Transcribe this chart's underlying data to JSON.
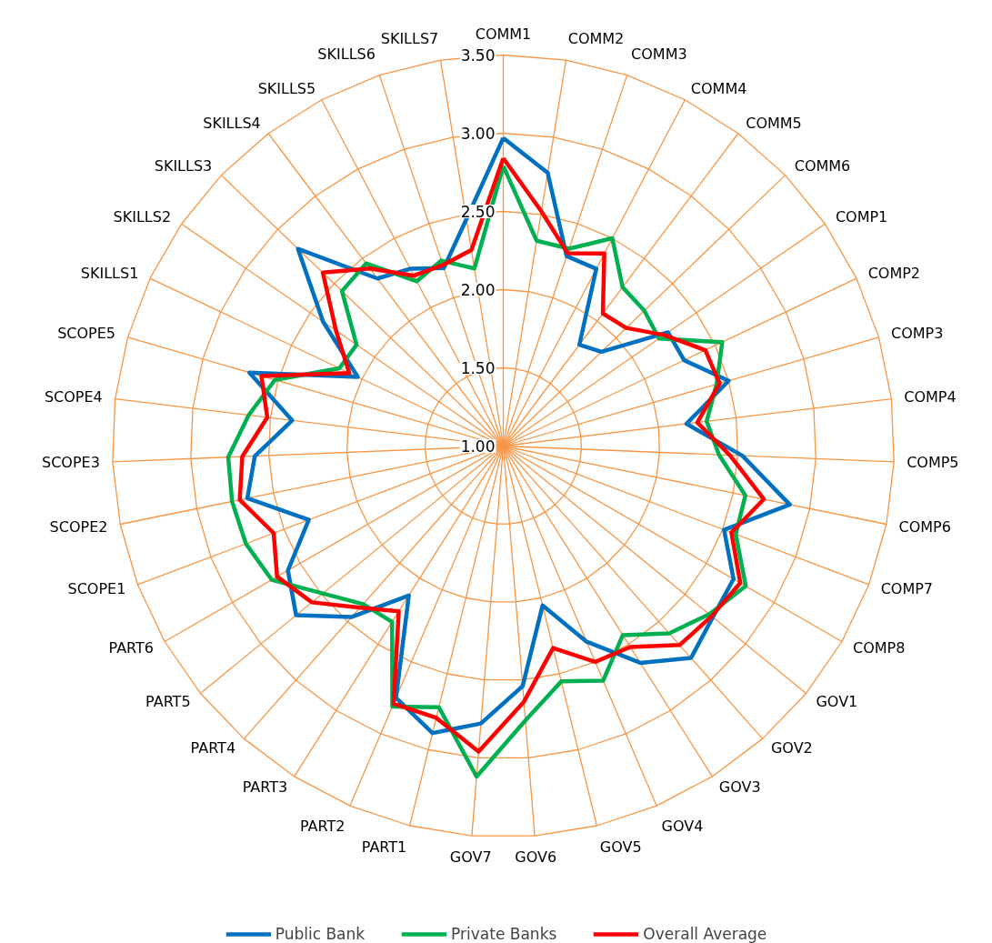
{
  "chart_data": {
    "type": "radar",
    "categories": [
      "COMM1",
      "COMM2",
      "COMM3",
      "COMM4",
      "COMM5",
      "COMM6",
      "COMP1",
      "COMP2",
      "COMP3",
      "COMP4",
      "COMP5",
      "COMP6",
      "COMP7",
      "COMP8",
      "GOV1",
      "GOV2",
      "GOV3",
      "GOV4",
      "GOV5",
      "GOV6",
      "GOV7",
      "PART1",
      "PART2",
      "PART3",
      "PART4",
      "PART5",
      "PART6",
      "SCOPE1",
      "SCOPE2",
      "SCOPE3",
      "SCOPE4",
      "SCOPE5",
      "SKILLS1",
      "SKILLS2",
      "SKILLS3",
      "SKILLS4",
      "SKILLS5",
      "SKILLS6",
      "SKILLS7"
    ],
    "series": [
      {
        "name": "Public Bank",
        "color": "#0070c0",
        "values": [
          2.97,
          2.77,
          2.28,
          2.28,
          1.81,
          1.87,
          2.28,
          2.28,
          2.5,
          2.18,
          2.53,
          2.87,
          2.51,
          2.7,
          2.73,
          2.81,
          2.64,
          2.36,
          2.05,
          2.54,
          2.78,
          2.89,
          2.75,
          2.13,
          2.46,
          2.71,
          2.59,
          2.33,
          2.67,
          2.59,
          2.36,
          2.69,
          2.03,
          2.4,
          2.82,
          2.34,
          2.28,
          2.2,
          2.47
        ]
      },
      {
        "name": "Private Banks",
        "color": "#00b050",
        "values": [
          2.79,
          2.33,
          2.33,
          2.5,
          2.27,
          2.25,
          2.21,
          2.55,
          2.42,
          2.31,
          2.38,
          2.58,
          2.59,
          2.79,
          2.7,
          2.6,
          2.43,
          2.63,
          2.55,
          2.76,
          3.12,
          2.72,
          2.81,
          2.33,
          2.35,
          2.49,
          2.71,
          2.76,
          2.77,
          2.76,
          2.64,
          2.52,
          2.16,
          2.14,
          2.43,
          2.46,
          2.19,
          2.25,
          2.15
        ]
      },
      {
        "name": "Overall Average",
        "color": "#ff0000",
        "values": [
          2.84,
          2.52,
          2.3,
          2.39,
          2.06,
          2.09,
          2.25,
          2.43,
          2.44,
          2.25,
          2.45,
          2.7,
          2.56,
          2.75,
          2.72,
          2.7,
          2.52,
          2.5,
          2.33,
          2.64,
          2.96,
          2.79,
          2.79,
          2.25,
          2.38,
          2.58,
          2.67,
          2.57,
          2.72,
          2.67,
          2.52,
          2.61,
          2.09,
          2.3,
          2.6,
          2.42,
          2.23,
          2.22,
          2.27
        ]
      }
    ],
    "ylim": [
      1.0,
      3.5
    ],
    "yticks": [
      {
        "value": 1.0,
        "label": "1.00"
      },
      {
        "value": 1.5,
        "label": "1.50"
      },
      {
        "value": 2.0,
        "label": "2.00"
      },
      {
        "value": 2.5,
        "label": "2.50"
      },
      {
        "value": 3.0,
        "label": "3.00"
      },
      {
        "value": 3.5,
        "label": "3.50"
      }
    ],
    "grid": true,
    "legend": "bottom",
    "line_style": "solid",
    "marker": "none"
  }
}
